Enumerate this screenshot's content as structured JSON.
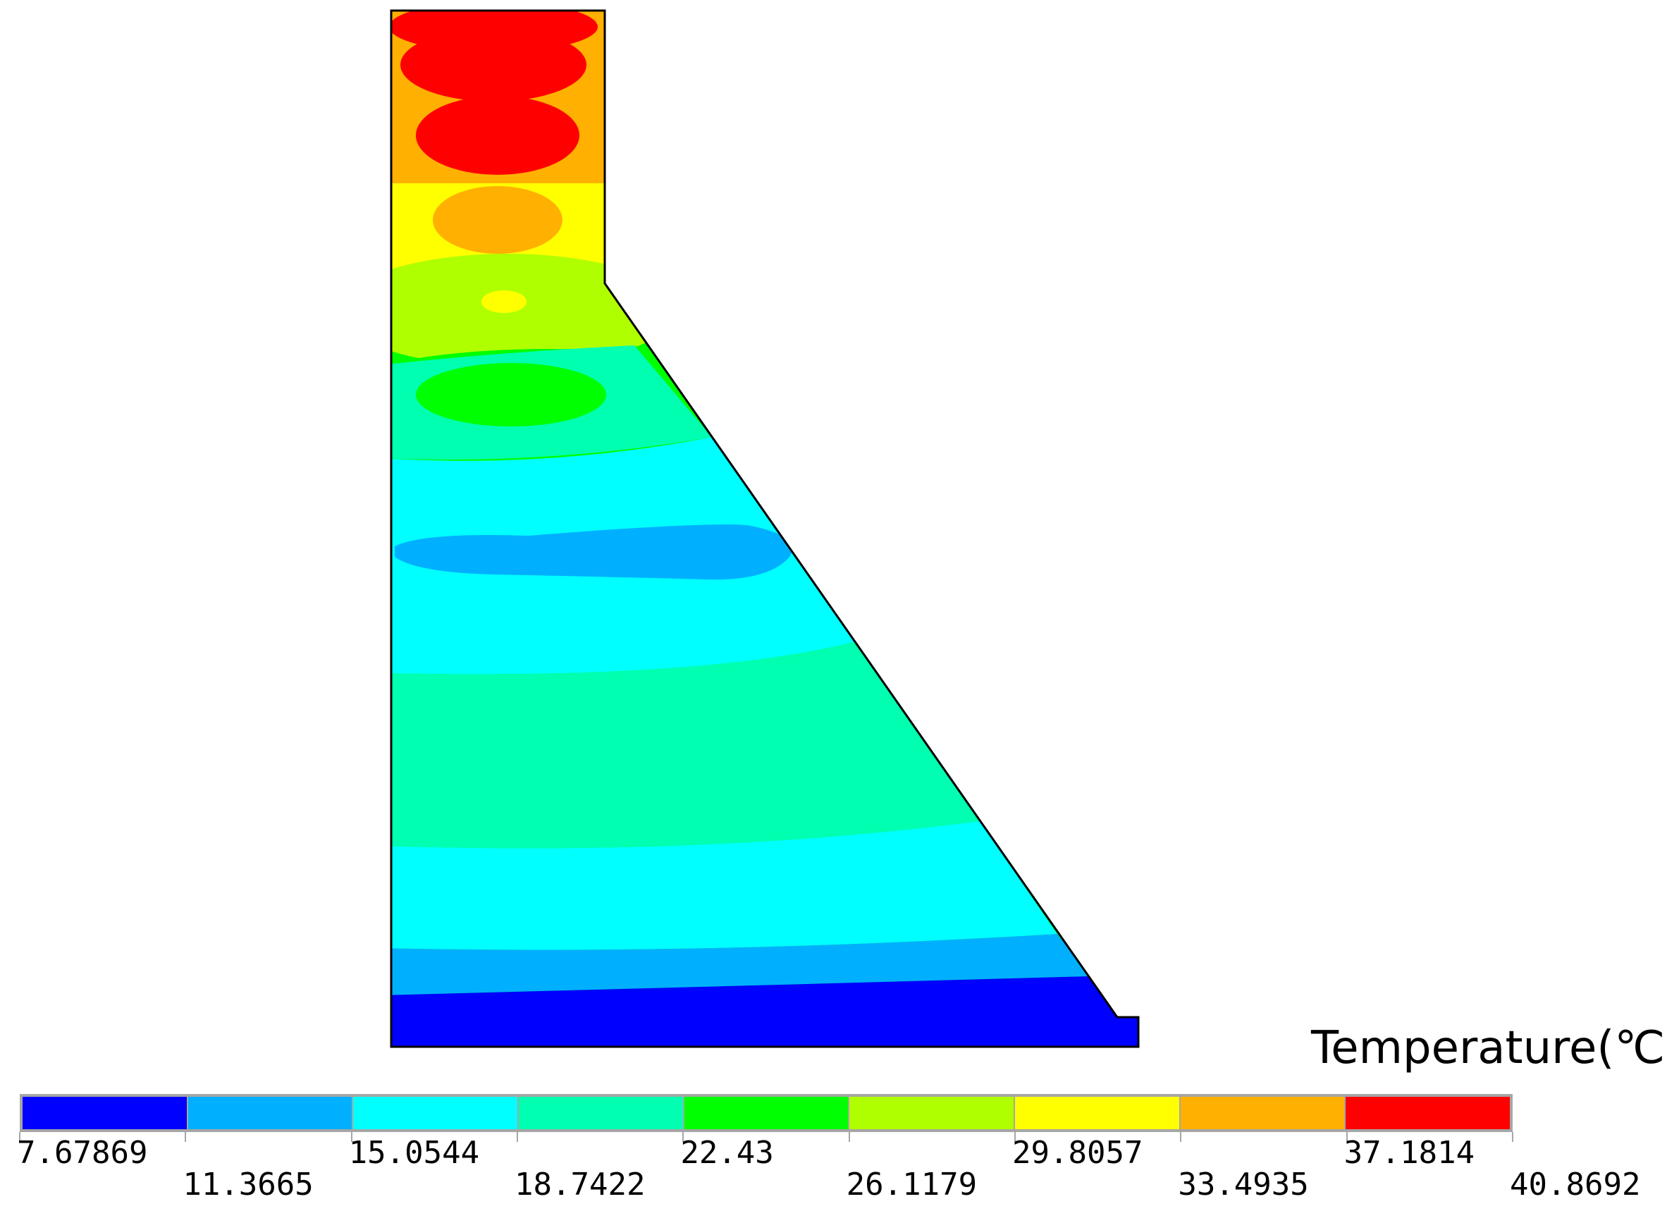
{
  "legend": {
    "title": "Temperature(℃)",
    "ticks": [
      "7.67869",
      "11.3665",
      "15.0544",
      "18.7422",
      "22.43",
      "26.1179",
      "29.8057",
      "33.4935",
      "37.1814",
      "40.8692"
    ],
    "bands": [
      {
        "min": 7.67869,
        "max": 11.3665,
        "color": "#0000ff"
      },
      {
        "min": 11.3665,
        "max": 15.0544,
        "color": "#00b0ff"
      },
      {
        "min": 15.0544,
        "max": 18.7422,
        "color": "#00ffff"
      },
      {
        "min": 18.7422,
        "max": 22.43,
        "color": "#00ffb0"
      },
      {
        "min": 22.43,
        "max": 26.1179,
        "color": "#00ff00"
      },
      {
        "min": 26.1179,
        "max": 29.8057,
        "color": "#b0ff00"
      },
      {
        "min": 29.8057,
        "max": 33.4935,
        "color": "#ffff00"
      },
      {
        "min": 33.4935,
        "max": 37.1814,
        "color": "#ffb000"
      },
      {
        "min": 37.1814,
        "max": 40.8692,
        "color": "#ff0000"
      }
    ]
  }
}
